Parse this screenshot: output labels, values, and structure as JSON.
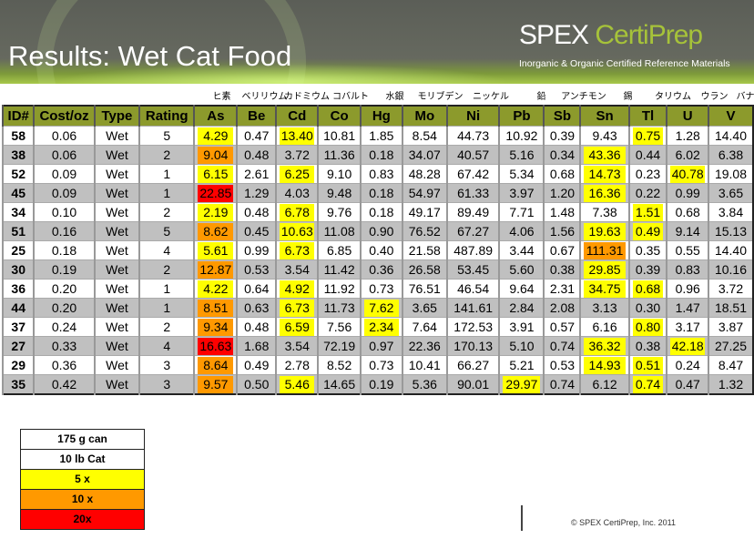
{
  "title": "Results:  Wet Cat Food",
  "logo": {
    "brand_a": "SPEX ",
    "brand_b": "CertiPrep",
    "subtitle": "Inorganic & Organic Certified Reference Materials"
  },
  "japanese_labels": [
    "ヒ素",
    "ベリリウム",
    "カドミウム",
    "コバルト",
    "水銀",
    "モリブデン",
    "ニッケル",
    "鉛",
    "アンチモン",
    "錫",
    "タリウム",
    "ウラン",
    "バナジウム"
  ],
  "columns": [
    "ID#",
    "Cost/oz",
    "Type",
    "Rating",
    "As",
    "Be",
    "Cd",
    "Co",
    "Hg",
    "Mo",
    "Ni",
    "Pb",
    "Sb",
    "Sn",
    "Tl",
    "U",
    "V"
  ],
  "rows": [
    [
      "58",
      "0.06",
      "Wet",
      "5",
      "4.29",
      "0.47",
      "13.40",
      "10.81",
      "1.85",
      "8.54",
      "44.73",
      "10.92",
      "0.39",
      "9.43",
      "0.75",
      "1.28",
      "14.40"
    ],
    [
      "38",
      "0.06",
      "Wet",
      "2",
      "9.04",
      "0.48",
      "3.72",
      "11.36",
      "0.18",
      "34.07",
      "40.57",
      "5.16",
      "0.34",
      "43.36",
      "0.44",
      "6.02",
      "6.38"
    ],
    [
      "52",
      "0.09",
      "Wet",
      "1",
      "6.15",
      "2.61",
      "6.25",
      "9.10",
      "0.83",
      "48.28",
      "67.42",
      "5.34",
      "0.68",
      "14.73",
      "0.23",
      "40.78",
      "19.08"
    ],
    [
      "45",
      "0.09",
      "Wet",
      "1",
      "22.85",
      "1.29",
      "4.03",
      "9.48",
      "0.18",
      "54.97",
      "61.33",
      "3.97",
      "1.20",
      "16.36",
      "0.22",
      "0.99",
      "3.65"
    ],
    [
      "34",
      "0.10",
      "Wet",
      "2",
      "2.19",
      "0.48",
      "6.78",
      "9.76",
      "0.18",
      "49.17",
      "89.49",
      "7.71",
      "1.48",
      "7.38",
      "1.51",
      "0.68",
      "3.84"
    ],
    [
      "51",
      "0.16",
      "Wet",
      "5",
      "8.62",
      "0.45",
      "10.63",
      "11.08",
      "0.90",
      "76.52",
      "67.27",
      "4.06",
      "1.56",
      "19.63",
      "0.49",
      "9.14",
      "15.13"
    ],
    [
      "25",
      "0.18",
      "Wet",
      "4",
      "5.61",
      "0.99",
      "6.73",
      "6.85",
      "0.40",
      "21.58",
      "487.89",
      "3.44",
      "0.67",
      "111.31",
      "0.35",
      "0.55",
      "14.40"
    ],
    [
      "30",
      "0.19",
      "Wet",
      "2",
      "12.87",
      "0.53",
      "3.54",
      "11.42",
      "0.36",
      "26.58",
      "53.45",
      "5.60",
      "0.38",
      "29.85",
      "0.39",
      "0.83",
      "10.16"
    ],
    [
      "36",
      "0.20",
      "Wet",
      "1",
      "4.22",
      "0.64",
      "4.92",
      "11.92",
      "0.73",
      "76.51",
      "46.54",
      "9.64",
      "2.31",
      "34.75",
      "0.68",
      "0.96",
      "3.72"
    ],
    [
      "44",
      "0.20",
      "Wet",
      "1",
      "8.51",
      "0.63",
      "6.73",
      "11.73",
      "7.62",
      "3.65",
      "141.61",
      "2.84",
      "2.08",
      "3.13",
      "0.30",
      "1.47",
      "18.51"
    ],
    [
      "37",
      "0.24",
      "Wet",
      "2",
      "9.34",
      "0.48",
      "6.59",
      "7.56",
      "2.34",
      "7.64",
      "172.53",
      "3.91",
      "0.57",
      "6.16",
      "0.80",
      "3.17",
      "3.87"
    ],
    [
      "27",
      "0.33",
      "Wet",
      "4",
      "16.63",
      "1.68",
      "3.54",
      "72.19",
      "0.97",
      "22.36",
      "170.13",
      "5.10",
      "0.74",
      "36.32",
      "0.38",
      "42.18",
      "27.25"
    ],
    [
      "29",
      "0.36",
      "Wet",
      "3",
      "8.64",
      "0.49",
      "2.78",
      "8.52",
      "0.73",
      "10.41",
      "66.27",
      "5.21",
      "0.53",
      "14.93",
      "0.51",
      "0.24",
      "8.47"
    ],
    [
      "35",
      "0.42",
      "Wet",
      "3",
      "9.57",
      "0.50",
      "5.46",
      "14.65",
      "0.19",
      "5.36",
      "90.01",
      "29.97",
      "0.74",
      "6.12",
      "0.74",
      "0.47",
      "1.32"
    ]
  ],
  "highlights": [
    {
      "As": "y",
      "Cd": "y",
      "Tl": "y"
    },
    {
      "As": "o",
      "Sn": "y"
    },
    {
      "As": "y",
      "Cd": "y",
      "Sn": "y",
      "U": "y"
    },
    {
      "As": "r",
      "Sn": "y"
    },
    {
      "As": "y",
      "Cd": "y",
      "Tl": "y"
    },
    {
      "As": "o",
      "Cd": "y",
      "Sn": "y",
      "Tl": "y"
    },
    {
      "As": "y",
      "Cd": "y",
      "Sn": "o"
    },
    {
      "As": "o",
      "Sn": "y"
    },
    {
      "As": "y",
      "Cd": "y",
      "Sn": "y",
      "Tl": "y"
    },
    {
      "As": "o",
      "Cd": "y",
      "Hg": "y"
    },
    {
      "As": "o",
      "Cd": "y",
      "Hg": "y",
      "Tl": "y"
    },
    {
      "As": "r",
      "Sn": "y",
      "U": "y"
    },
    {
      "As": "o",
      "Sn": "y",
      "Tl": "y"
    },
    {
      "As": "o",
      "Cd": "y",
      "Pb": "y",
      "Tl": "y"
    }
  ],
  "legend": [
    {
      "label": "175 g can",
      "color": "#ffffff"
    },
    {
      "label": "10 lb Cat",
      "color": "#ffffff"
    },
    {
      "label": "5 x",
      "color": "#ffff00"
    },
    {
      "label": "10 x",
      "color": "#ff9900"
    },
    {
      "label": "20x",
      "color": "#ff0000"
    }
  ],
  "copyright": "© SPEX CertiPrep, Inc. 2011"
}
